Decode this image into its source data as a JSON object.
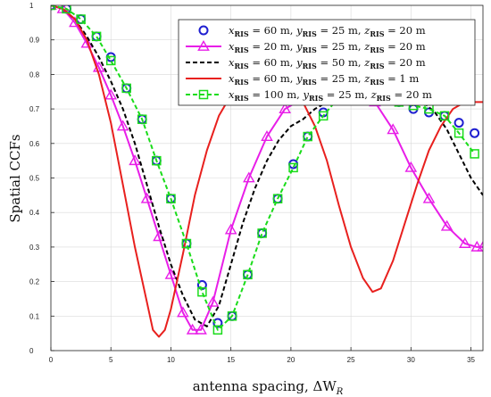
{
  "chart_data": {
    "type": "line",
    "xlabel": "antenna spacing, ΔW",
    "xlabel_sub": "R",
    "ylabel": "Spatial CCFs",
    "xlim": [
      0,
      36
    ],
    "ylim": [
      0,
      1
    ],
    "xticks": [
      0,
      5,
      10,
      15,
      20,
      25,
      30,
      35
    ],
    "yticks": [
      0,
      0.1,
      0.2,
      0.3,
      0.4,
      0.5,
      0.6,
      0.7,
      0.8,
      0.9,
      1
    ],
    "ytick_labels": [
      "0",
      "0.1",
      "0.2",
      "0.3",
      "0.4",
      "0.5",
      "0.6",
      "0.7",
      "0.8",
      "0.9",
      "1"
    ],
    "grid": true,
    "legend_position": "top-right",
    "series": [
      {
        "name": "x_RIS = 60 m, y_RIS = 25 m, z_RIS = 20 m",
        "legend": {
          "x": "60",
          "y": "25",
          "z": "20"
        },
        "color": "#1f1fd0",
        "line": "none",
        "marker": "circle",
        "x": [
          0,
          1.3,
          2.5,
          3.8,
          5,
          6.3,
          7.6,
          8.8,
          10,
          11.3,
          12.6,
          13.9,
          15.1,
          16.4,
          17.6,
          18.9,
          20.2,
          21.4,
          22.7,
          23.9,
          25.2,
          26.5,
          27.7,
          29,
          30.2,
          31.5,
          32.8,
          34,
          35.3
        ],
        "y": [
          1,
          0.99,
          0.96,
          0.91,
          0.85,
          0.76,
          0.67,
          0.55,
          0.44,
          0.31,
          0.19,
          0.08,
          0.1,
          0.22,
          0.34,
          0.44,
          0.54,
          0.62,
          0.69,
          0.73,
          0.75,
          0.75,
          0.73,
          0.72,
          0.7,
          0.69,
          0.68,
          0.66,
          0.63
        ]
      },
      {
        "name": "x_RIS = 20 m, y_RIS = 25 m, z_RIS = 20 m",
        "legend": {
          "x": "20",
          "y": "25",
          "z": "20"
        },
        "color": "#e81ee8",
        "line": "solid",
        "marker": "triangle",
        "x": [
          0,
          1,
          2,
          3,
          4,
          5,
          6,
          7,
          8,
          9,
          10,
          11,
          11.8,
          12.5,
          13.5,
          15,
          16.5,
          18,
          19.5,
          21,
          22,
          23.5,
          25,
          26,
          27,
          28.5,
          30,
          31.5,
          33,
          34.5,
          35.5,
          36
        ],
        "y": [
          1,
          0.99,
          0.95,
          0.89,
          0.82,
          0.74,
          0.65,
          0.55,
          0.44,
          0.33,
          0.22,
          0.11,
          0.06,
          0.06,
          0.14,
          0.35,
          0.5,
          0.62,
          0.7,
          0.73,
          0.73,
          0.73,
          0.73,
          0.73,
          0.72,
          0.64,
          0.53,
          0.44,
          0.36,
          0.31,
          0.3,
          0.3
        ]
      },
      {
        "name": "x_RIS = 60 m, y_RIS = 50 m, z_RIS = 20 m",
        "legend": {
          "x": "60",
          "y": "50",
          "z": "20"
        },
        "color": "#000000",
        "line": "dashed",
        "marker": "none",
        "x": [
          0,
          1,
          2,
          3,
          4,
          5,
          6,
          7,
          8,
          9,
          10,
          11,
          12,
          13,
          14,
          15,
          16,
          17,
          18,
          19,
          20,
          21,
          22,
          23,
          24,
          25,
          26,
          27,
          28,
          29,
          30,
          31,
          32,
          33,
          34,
          35,
          36
        ],
        "y": [
          1,
          0.99,
          0.96,
          0.91,
          0.85,
          0.78,
          0.7,
          0.6,
          0.48,
          0.36,
          0.25,
          0.16,
          0.09,
          0.07,
          0.13,
          0.25,
          0.37,
          0.47,
          0.55,
          0.61,
          0.65,
          0.67,
          0.7,
          0.72,
          0.73,
          0.73,
          0.73,
          0.73,
          0.73,
          0.73,
          0.73,
          0.72,
          0.69,
          0.64,
          0.57,
          0.5,
          0.45
        ]
      },
      {
        "name": "x_RIS = 60 m, y_RIS = 25 m, z_RIS = 1 m",
        "legend": {
          "x": "60",
          "y": "25",
          "z": "1"
        },
        "color": "#e8201e",
        "line": "solid",
        "marker": "none",
        "x": [
          0,
          1,
          2,
          3,
          4,
          5,
          6,
          7,
          8,
          8.5,
          9,
          9.5,
          10,
          11,
          12,
          13,
          14,
          15,
          16,
          17,
          18,
          19,
          20,
          21,
          22,
          23,
          24,
          25,
          26,
          26.8,
          27.5,
          28.5,
          29.5,
          30.5,
          31.5,
          32.5,
          33.5,
          34.5,
          35.5,
          36
        ],
        "y": [
          1,
          0.99,
          0.96,
          0.9,
          0.8,
          0.66,
          0.48,
          0.3,
          0.14,
          0.06,
          0.04,
          0.06,
          0.12,
          0.28,
          0.45,
          0.58,
          0.68,
          0.74,
          0.77,
          0.78,
          0.77,
          0.75,
          0.73,
          0.72,
          0.65,
          0.55,
          0.42,
          0.3,
          0.21,
          0.17,
          0.18,
          0.26,
          0.37,
          0.48,
          0.58,
          0.65,
          0.7,
          0.72,
          0.72,
          0.72
        ]
      },
      {
        "name": "x_RIS = 100 m, y_RIS = 25 m, z_RIS = 20 m",
        "legend": {
          "x": "100",
          "y": "25",
          "z": "20"
        },
        "color": "#1adc1a",
        "line": "dashed",
        "marker": "square",
        "x": [
          0,
          1.3,
          2.5,
          3.8,
          5,
          6.3,
          7.6,
          8.8,
          10,
          11.3,
          12.6,
          13.9,
          15.1,
          16.4,
          17.6,
          18.9,
          20.2,
          21.4,
          22.7,
          23.9,
          25.2,
          26.5,
          27.7,
          29,
          30.2,
          31.5,
          32.8,
          34,
          35.3
        ],
        "y": [
          1,
          0.99,
          0.96,
          0.91,
          0.84,
          0.76,
          0.67,
          0.55,
          0.44,
          0.31,
          0.17,
          0.06,
          0.1,
          0.22,
          0.34,
          0.44,
          0.53,
          0.62,
          0.68,
          0.73,
          0.75,
          0.75,
          0.74,
          0.72,
          0.71,
          0.7,
          0.68,
          0.63,
          0.57
        ]
      }
    ]
  }
}
